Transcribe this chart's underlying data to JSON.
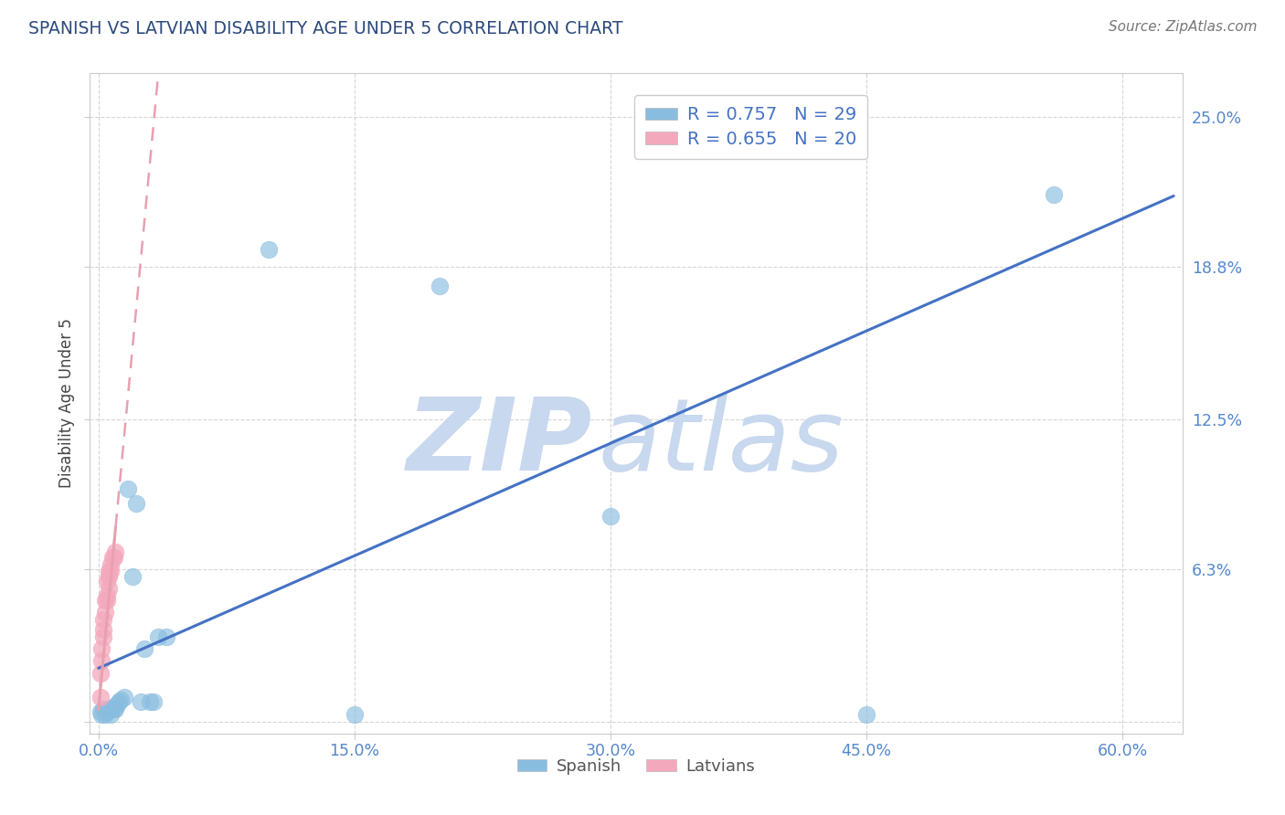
{
  "title": "SPANISH VS LATVIAN DISABILITY AGE UNDER 5 CORRELATION CHART",
  "source_text": "Source: ZipAtlas.com",
  "ylabel": "Disability Age Under 5",
  "x_ticks": [
    0.0,
    0.15,
    0.3,
    0.45,
    0.6
  ],
  "x_tick_labels": [
    "0.0%",
    "15.0%",
    "30.0%",
    "45.0%",
    "60.0%"
  ],
  "y_ticks": [
    0.0,
    0.063,
    0.125,
    0.188,
    0.25
  ],
  "y_tick_labels": [
    "",
    "6.3%",
    "12.5%",
    "18.8%",
    "25.0%"
  ],
  "xlim": [
    -0.005,
    0.635
  ],
  "ylim": [
    -0.005,
    0.268
  ],
  "spanish_x": [
    0.001,
    0.002,
    0.003,
    0.004,
    0.005,
    0.006,
    0.007,
    0.008,
    0.009,
    0.01,
    0.011,
    0.012,
    0.013,
    0.015,
    0.017,
    0.02,
    0.022,
    0.025,
    0.027,
    0.03,
    0.032,
    0.035,
    0.04,
    0.1,
    0.15,
    0.2,
    0.3,
    0.45,
    0.56
  ],
  "spanish_y": [
    0.004,
    0.003,
    0.005,
    0.003,
    0.004,
    0.005,
    0.003,
    0.006,
    0.005,
    0.005,
    0.007,
    0.008,
    0.009,
    0.01,
    0.096,
    0.06,
    0.09,
    0.008,
    0.03,
    0.008,
    0.008,
    0.035,
    0.035,
    0.195,
    0.003,
    0.18,
    0.085,
    0.003,
    0.218
  ],
  "latvian_x": [
    0.001,
    0.001,
    0.002,
    0.002,
    0.003,
    0.003,
    0.003,
    0.004,
    0.004,
    0.005,
    0.005,
    0.005,
    0.006,
    0.006,
    0.006,
    0.007,
    0.007,
    0.008,
    0.009,
    0.01
  ],
  "latvian_y": [
    0.01,
    0.02,
    0.025,
    0.03,
    0.035,
    0.038,
    0.042,
    0.045,
    0.05,
    0.05,
    0.052,
    0.058,
    0.055,
    0.06,
    0.062,
    0.062,
    0.065,
    0.068,
    0.068,
    0.07
  ],
  "spanish_color": "#89bde0",
  "latvian_color": "#f4a8bc",
  "blue_line_color": "#4472c4",
  "pink_line_color": "#e8a0b0",
  "R_spanish": 0.757,
  "N_spanish": 29,
  "R_latvian": 0.655,
  "N_latvian": 20,
  "watermark_zip": "ZIP",
  "watermark_atlas": "atlas",
  "watermark_color": "#c8d8ee",
  "title_color": "#2c4a7c",
  "source_color": "#777777",
  "axis_color": "#5588cc",
  "grid_color": "#cccccc",
  "legend_label_color": "#4472c4"
}
